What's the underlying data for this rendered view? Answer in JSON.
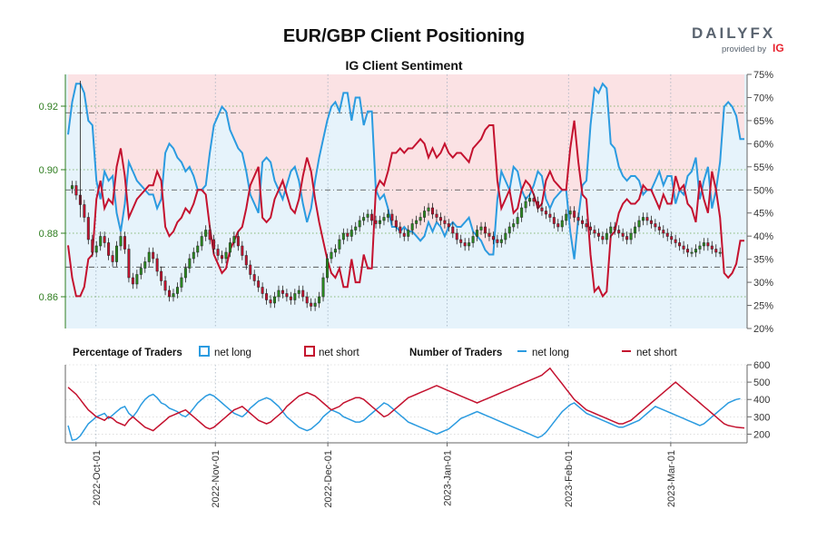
{
  "chart_data": {
    "title": "EUR/GBP Client Positioning",
    "subtitle": "IG Client Sentiment",
    "type": "candlestick-with-sentiment",
    "brand": {
      "logo_text": "DAILYFX",
      "provided_by": "provided by",
      "ig_mark": "IG"
    },
    "colors": {
      "net_long": "#2b9be0",
      "net_short": "#c4122f",
      "up_candle": "#2a8a1f",
      "down_candle": "#c4122f",
      "price_axis": "#2e7d1f"
    },
    "price_axis": {
      "ylim": [
        0.85,
        0.93
      ],
      "ticks": [
        "0.86",
        "0.88",
        "0.90",
        "0.92"
      ]
    },
    "percent_axis": {
      "ylim": [
        20,
        75
      ],
      "ticks": [
        "20%",
        "25%",
        "30%",
        "35%",
        "40%",
        "45%",
        "50%",
        "55%",
        "60%",
        "65%",
        "70%",
        "75%"
      ]
    },
    "traders_axis": {
      "ylim": [
        150,
        600
      ],
      "ticks": [
        "200",
        "300",
        "400",
        "500",
        "600"
      ]
    },
    "date_labels": [
      "2022-Oct-01",
      "2022-Nov-01",
      "2022-Dec-01",
      "2023-Jan-01",
      "2023-Feb-01",
      "2023-Mar-01"
    ],
    "legend": {
      "percentage_title": "Percentage of Traders",
      "number_title": "Number of Traders",
      "net_long": "net long",
      "net_short": "net short"
    },
    "net_long_pct": [
      62,
      69,
      73,
      73,
      71,
      65,
      64,
      52,
      48,
      54,
      52,
      53,
      45,
      41,
      47,
      56,
      54,
      52,
      51,
      50,
      49,
      49,
      46,
      48,
      58,
      60,
      59,
      57,
      56,
      54,
      55,
      53,
      50,
      50,
      51,
      58,
      64,
      66,
      68,
      67,
      63,
      61,
      59,
      58,
      54,
      49,
      47,
      45,
      56,
      57,
      56,
      52,
      50,
      48,
      51,
      54,
      55,
      52,
      47,
      43,
      46,
      52,
      57,
      61,
      65,
      68,
      69,
      67,
      71,
      71,
      65,
      70,
      70,
      64,
      67,
      67,
      50,
      48,
      49,
      46,
      42,
      42,
      41,
      42,
      41,
      41,
      40,
      39,
      40,
      43,
      41,
      43,
      42,
      40,
      42,
      43,
      42,
      42,
      43,
      44,
      41,
      40,
      39,
      37,
      36,
      36,
      48,
      54,
      52,
      50,
      55,
      54,
      50,
      48,
      49,
      51,
      54,
      53,
      48,
      46,
      48,
      49,
      50,
      50,
      41,
      35,
      44,
      51,
      52,
      64,
      72,
      71,
      73,
      72,
      60,
      59,
      55,
      53,
      52,
      53,
      53,
      52,
      49,
      50,
      50,
      52,
      54,
      51,
      53,
      53,
      47,
      50,
      49,
      53,
      54,
      57,
      48,
      52,
      55,
      46,
      50,
      56,
      68,
      69,
      68,
      66,
      61,
      61
    ],
    "net_short_pct": [
      38,
      31,
      27,
      27,
      29,
      35,
      36,
      48,
      52,
      46,
      48,
      47,
      55,
      59,
      53,
      44,
      46,
      48,
      49,
      50,
      51,
      51,
      54,
      52,
      42,
      40,
      41,
      43,
      44,
      46,
      45,
      47,
      50,
      50,
      49,
      42,
      36,
      34,
      32,
      33,
      37,
      39,
      41,
      42,
      46,
      51,
      53,
      55,
      44,
      43,
      44,
      48,
      50,
      52,
      49,
      46,
      45,
      48,
      53,
      57,
      54,
      48,
      43,
      39,
      35,
      32,
      31,
      33,
      29,
      29,
      35,
      30,
      30,
      36,
      33,
      33,
      50,
      52,
      51,
      54,
      58,
      58,
      59,
      58,
      59,
      59,
      60,
      61,
      60,
      57,
      59,
      57,
      58,
      60,
      58,
      57,
      58,
      58,
      57,
      56,
      59,
      60,
      61,
      63,
      64,
      64,
      52,
      46,
      48,
      50,
      45,
      46,
      50,
      52,
      51,
      49,
      46,
      47,
      52,
      54,
      52,
      51,
      50,
      50,
      59,
      65,
      56,
      49,
      48,
      36,
      28,
      29,
      27,
      28,
      40,
      41,
      45,
      47,
      48,
      47,
      47,
      48,
      51,
      50,
      50,
      48,
      46,
      49,
      47,
      47,
      53,
      50,
      51,
      47,
      46,
      43,
      52,
      48,
      45,
      54,
      50,
      44,
      32,
      31,
      32,
      34,
      39,
      39
    ],
    "net_long_traders": [
      250,
      165,
      170,
      190,
      225,
      260,
      280,
      300,
      310,
      320,
      290,
      310,
      330,
      350,
      360,
      320,
      300,
      330,
      370,
      400,
      420,
      430,
      410,
      380,
      370,
      350,
      340,
      330,
      310,
      300,
      320,
      350,
      380,
      400,
      420,
      430,
      420,
      400,
      380,
      360,
      340,
      320,
      310,
      300,
      320,
      350,
      370,
      390,
      400,
      410,
      400,
      380,
      360,
      330,
      300,
      280,
      260,
      240,
      230,
      220,
      230,
      250,
      270,
      300,
      320,
      340,
      330,
      320,
      300,
      290,
      280,
      270,
      270,
      280,
      300,
      320,
      340,
      360,
      380,
      370,
      350,
      330,
      310,
      290,
      270,
      260,
      250,
      240,
      230,
      220,
      210,
      200,
      210,
      220,
      230,
      250,
      270,
      290,
      300,
      310,
      320,
      330,
      320,
      310,
      300,
      290,
      280,
      270,
      260,
      250,
      240,
      230,
      220,
      210,
      200,
      190,
      180,
      190,
      210,
      240,
      270,
      300,
      330,
      350,
      370,
      380,
      360,
      340,
      320,
      310,
      300,
      290,
      280,
      270,
      260,
      250,
      240,
      240,
      250,
      260,
      270,
      280,
      300,
      320,
      340,
      360,
      350,
      340,
      330,
      320,
      310,
      300,
      290,
      280,
      270,
      260,
      250,
      260,
      280,
      300,
      320,
      340,
      360,
      380,
      390,
      400,
      405
    ],
    "net_short_traders": [
      470,
      450,
      430,
      400,
      370,
      340,
      320,
      300,
      290,
      280,
      300,
      290,
      270,
      260,
      250,
      280,
      300,
      280,
      260,
      240,
      230,
      220,
      240,
      260,
      280,
      300,
      310,
      320,
      330,
      340,
      320,
      300,
      280,
      260,
      240,
      230,
      240,
      260,
      280,
      300,
      320,
      340,
      350,
      360,
      340,
      320,
      300,
      280,
      270,
      260,
      270,
      290,
      310,
      330,
      360,
      380,
      400,
      420,
      430,
      440,
      430,
      420,
      400,
      380,
      360,
      340,
      350,
      360,
      380,
      390,
      400,
      410,
      410,
      400,
      380,
      360,
      340,
      320,
      300,
      310,
      330,
      350,
      370,
      390,
      410,
      420,
      430,
      440,
      450,
      460,
      470,
      480,
      470,
      460,
      450,
      440,
      430,
      420,
      410,
      400,
      390,
      380,
      390,
      400,
      410,
      420,
      430,
      440,
      450,
      460,
      470,
      480,
      490,
      500,
      510,
      520,
      530,
      540,
      560,
      580,
      550,
      520,
      490,
      460,
      430,
      400,
      380,
      360,
      340,
      330,
      320,
      310,
      300,
      290,
      280,
      270,
      260,
      260,
      270,
      280,
      300,
      320,
      340,
      360,
      380,
      400,
      420,
      440,
      460,
      480,
      500,
      480,
      460,
      440,
      420,
      400,
      380,
      360,
      340,
      320,
      300,
      280,
      260,
      250,
      245,
      240,
      238,
      236
    ],
    "price_close": [
      0.894,
      0.895,
      0.892,
      0.889,
      0.885,
      0.878,
      0.874,
      0.876,
      0.879,
      0.877,
      0.873,
      0.871,
      0.876,
      0.879,
      0.875,
      0.866,
      0.864,
      0.867,
      0.869,
      0.871,
      0.874,
      0.872,
      0.868,
      0.865,
      0.862,
      0.86,
      0.861,
      0.863,
      0.866,
      0.869,
      0.872,
      0.874,
      0.876,
      0.879,
      0.881,
      0.878,
      0.875,
      0.873,
      0.872,
      0.874,
      0.877,
      0.879,
      0.876,
      0.873,
      0.87,
      0.867,
      0.865,
      0.863,
      0.861,
      0.859,
      0.858,
      0.86,
      0.862,
      0.861,
      0.86,
      0.859,
      0.861,
      0.862,
      0.86,
      0.858,
      0.857,
      0.858,
      0.86,
      0.866,
      0.872,
      0.874,
      0.875,
      0.878,
      0.88,
      0.879,
      0.881,
      0.882,
      0.884,
      0.885,
      0.886,
      0.884,
      0.883,
      0.884,
      0.885,
      0.886,
      0.884,
      0.882,
      0.88,
      0.879,
      0.881,
      0.883,
      0.884,
      0.885,
      0.887,
      0.888,
      0.886,
      0.885,
      0.884,
      0.883,
      0.882,
      0.88,
      0.878,
      0.877,
      0.876,
      0.877,
      0.879,
      0.881,
      0.882,
      0.88,
      0.879,
      0.878,
      0.877,
      0.878,
      0.88,
      0.882,
      0.883,
      0.885,
      0.888,
      0.89,
      0.891,
      0.89,
      0.888,
      0.887,
      0.886,
      0.885,
      0.883,
      0.882,
      0.884,
      0.886,
      0.887,
      0.885,
      0.884,
      0.883,
      0.882,
      0.881,
      0.88,
      0.879,
      0.878,
      0.88,
      0.882,
      0.881,
      0.88,
      0.879,
      0.878,
      0.88,
      0.882,
      0.884,
      0.885,
      0.884,
      0.883,
      0.882,
      0.881,
      0.88,
      0.879,
      0.878,
      0.877,
      0.876,
      0.875,
      0.874,
      0.874,
      0.875,
      0.876,
      0.877,
      0.876,
      0.875,
      0.874,
      0.874
    ]
  }
}
